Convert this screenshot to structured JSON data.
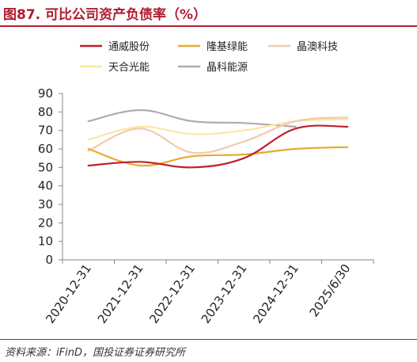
{
  "title": "图87. 可比公司资产负债率（%）",
  "source": "资料来源：iFinD，国投证券证券研究所",
  "chart_data": {
    "type": "line",
    "categories": [
      "2020-12-31",
      "2021-12-31",
      "2022-12-31",
      "2023-12-31",
      "2024-12-31",
      "2025/6/30"
    ],
    "ylim": [
      0,
      90
    ],
    "yticks": [
      0,
      10,
      20,
      30,
      40,
      50,
      60,
      70,
      80,
      90
    ],
    "legend_position": "top",
    "smooth": true,
    "series": [
      {
        "name": "通威股份",
        "color": "#c0202a",
        "values": [
          51,
          53,
          50,
          55,
          71,
          72
        ]
      },
      {
        "name": "隆基绿能",
        "color": "#e5ac2e",
        "values": [
          60,
          51,
          56,
          57,
          60,
          61
        ]
      },
      {
        "name": "晶澳科技",
        "color": "#f3c9ad",
        "values": [
          59,
          71,
          58,
          64,
          75,
          77
        ]
      },
      {
        "name": "天合光能",
        "color": "#fbe7a1",
        "values": [
          65,
          72,
          68,
          70,
          75,
          76
        ]
      },
      {
        "name": "晶科能源",
        "color": "#b3aaaf",
        "values": [
          75,
          81,
          75,
          74,
          72,
          null
        ]
      }
    ]
  }
}
